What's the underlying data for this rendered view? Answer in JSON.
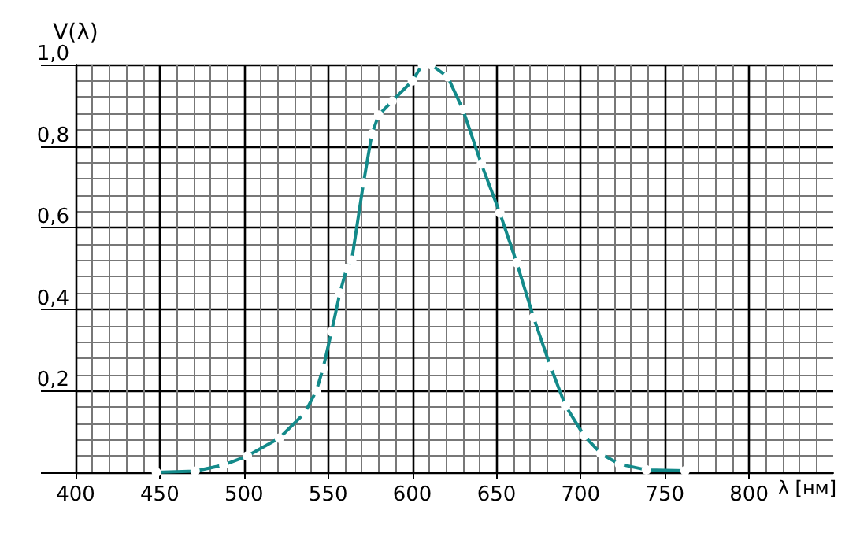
{
  "chart_data": {
    "type": "line",
    "xlabel": "λ [нм]",
    "ylabel": "V(λ)",
    "series": [
      {
        "color": "#138a8a",
        "x": [
          448,
          471,
          488,
          502,
          521,
          536,
          543,
          547,
          552,
          557,
          561,
          564,
          571,
          576,
          580,
          588,
          600,
          606,
          611,
          621,
          630,
          641,
          652,
          662,
          672,
          682,
          691,
          702,
          712,
          723,
          739,
          762
        ],
        "values": [
          0,
          0.003,
          0.018,
          0.04,
          0.084,
          0.145,
          0.2,
          0.255,
          0.345,
          0.44,
          0.5,
          0.52,
          0.71,
          0.83,
          0.876,
          0.91,
          0.96,
          1.0,
          1.0,
          0.97,
          0.89,
          0.756,
          0.636,
          0.514,
          0.38,
          0.26,
          0.163,
          0.09,
          0.046,
          0.02,
          0.006,
          0.004
        ]
      }
    ],
    "xlim": [
      400,
      850
    ],
    "ylim": [
      0,
      1.0
    ],
    "xticks": [
      400,
      450,
      500,
      550,
      600,
      650,
      700,
      750,
      800
    ],
    "yticks": [
      {
        "value": 0,
        "label": null
      },
      {
        "value": 0.2,
        "label": "0,2"
      },
      {
        "value": 0.4,
        "label": "0,4"
      },
      {
        "value": 0.6,
        "label": "0,6"
      },
      {
        "value": 0.8,
        "label": "0,8"
      },
      {
        "value": 1.0,
        "label": "1,0"
      }
    ],
    "grid": true,
    "marker": "circle",
    "line_style": "solid"
  }
}
